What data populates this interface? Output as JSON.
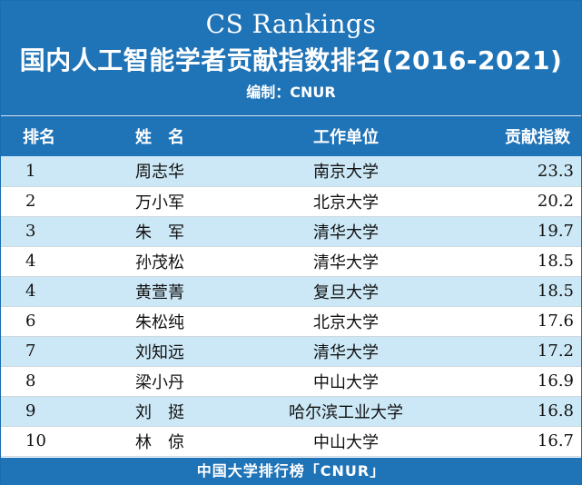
{
  "header": {
    "title_en": "CS Rankings",
    "title_cn": "国内人工智能学者贡献指数排名(2016-2021)",
    "editor": "编制：CNUR"
  },
  "table": {
    "columns": {
      "rank": "排名",
      "name": "姓　名",
      "unit": "工作单位",
      "score": "贡献指数"
    },
    "rows": [
      {
        "rank": "1",
        "name": "周志华",
        "unit": "南京大学",
        "score": "23.3"
      },
      {
        "rank": "2",
        "name": "万小军",
        "unit": "北京大学",
        "score": "20.2"
      },
      {
        "rank": "3",
        "name": "朱　军",
        "unit": "清华大学",
        "score": "19.7"
      },
      {
        "rank": "4",
        "name": "孙茂松",
        "unit": "清华大学",
        "score": "18.5"
      },
      {
        "rank": "4",
        "name": "黄萱菁",
        "unit": "复旦大学",
        "score": "18.5"
      },
      {
        "rank": "6",
        "name": "朱松纯",
        "unit": "北京大学",
        "score": "17.6"
      },
      {
        "rank": "7",
        "name": "刘知远",
        "unit": "清华大学",
        "score": "17.2"
      },
      {
        "rank": "8",
        "name": "梁小丹",
        "unit": "中山大学",
        "score": "16.9"
      },
      {
        "rank": "9",
        "name": "刘　挺",
        "unit": "哈尔滨工业大学",
        "score": "16.8"
      },
      {
        "rank": "10",
        "name": "林　倞",
        "unit": "中山大学",
        "score": "16.7"
      }
    ]
  },
  "footer": {
    "text": "中国大学排行榜「CNUR」"
  },
  "colors": {
    "header_bg": "#1f73b7",
    "row_stripe": "#cce8f6",
    "text_on_header": "#ffffff"
  }
}
